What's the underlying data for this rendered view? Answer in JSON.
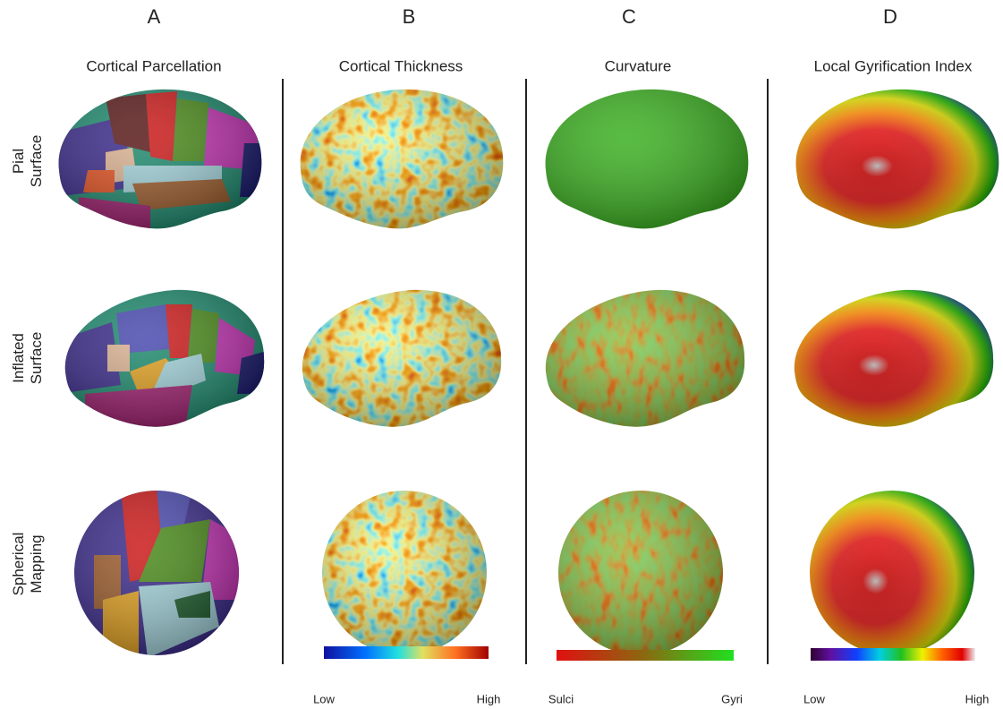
{
  "columns": [
    {
      "letter": "A",
      "title": "Cortical Parcellation"
    },
    {
      "letter": "B",
      "title": "Cortical Thickness",
      "colorbar": {
        "low": "Low",
        "high": "High"
      }
    },
    {
      "letter": "C",
      "title": "Curvature",
      "colorbar": {
        "low": "Sulci",
        "high": "Gyri"
      }
    },
    {
      "letter": "D",
      "title": "Local Gyrification Index",
      "colorbar": {
        "low": "Low",
        "high": "High"
      }
    }
  ],
  "rows": [
    [
      "Pial",
      "Surface"
    ],
    [
      "Inflated",
      "Surface"
    ],
    [
      "Spherical",
      "Mapping"
    ]
  ]
}
